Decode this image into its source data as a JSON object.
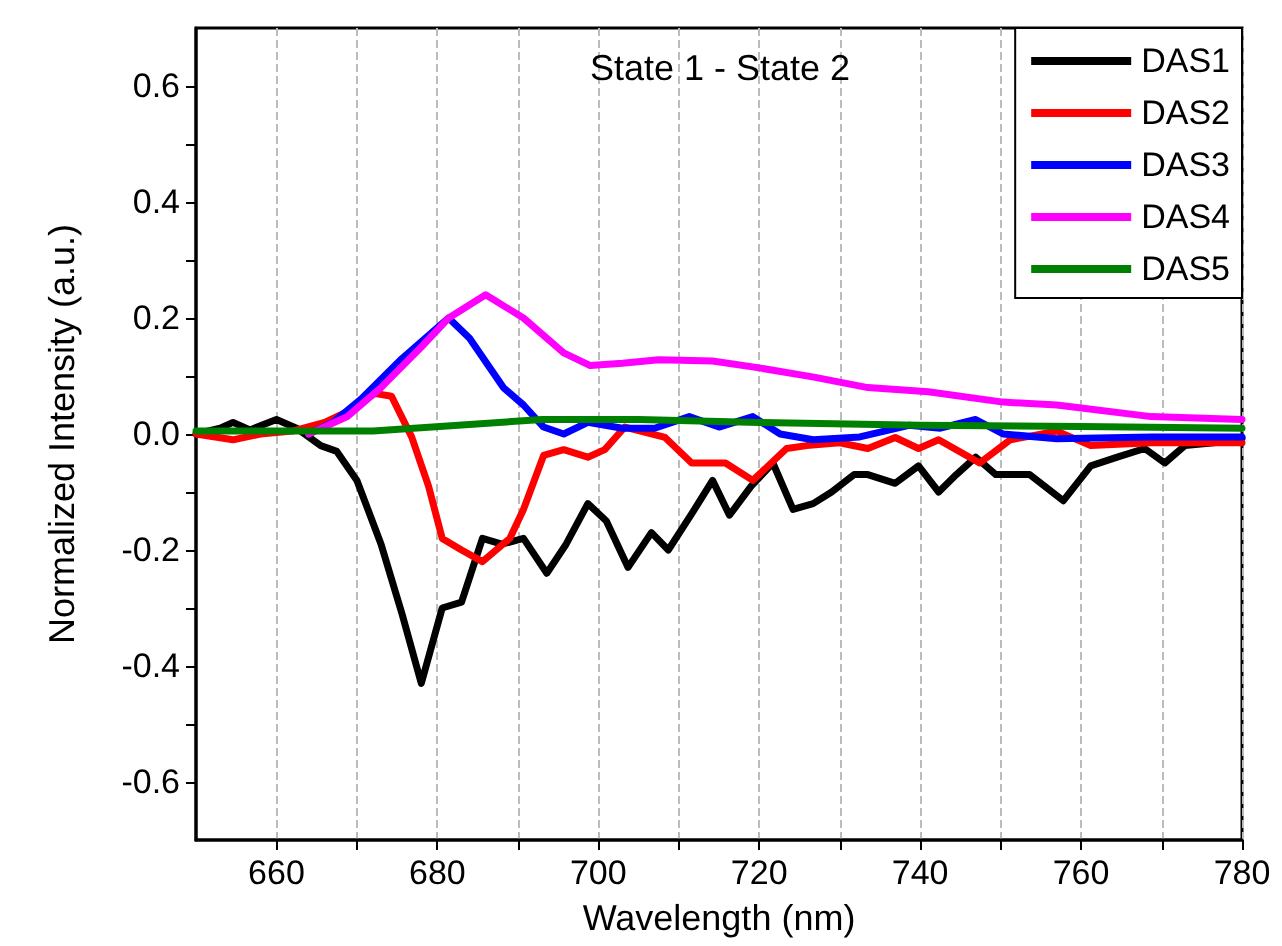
{
  "chart_data": {
    "type": "line",
    "title": "State 1 - State 2",
    "xlabel": "Wavelength (nm)",
    "ylabel": "Normalized Intensity (a.u.)",
    "xlim": [
      650,
      780
    ],
    "ylim": [
      -0.7,
      0.7
    ],
    "xticks": [
      660,
      {
        "value": 670,
        "label": null
      },
      680,
      {
        "value": 690,
        "label": null
      },
      700,
      {
        "value": 710,
        "label": null
      },
      720,
      {
        "value": 730,
        "label": null
      },
      740,
      {
        "value": 750,
        "label": null
      },
      760,
      {
        "value": 770,
        "label": null
      },
      780
    ],
    "yticks": [
      -0.6,
      {
        "value": -0.5,
        "label": null
      },
      -0.4,
      {
        "value": -0.3,
        "label": null
      },
      -0.2,
      {
        "value": -0.1,
        "label": null
      },
      {
        "value": 0,
        "label": "0.0"
      },
      {
        "value": 0.1,
        "label": null
      },
      0.2,
      {
        "value": 0.3,
        "label": null
      },
      0.4,
      {
        "value": 0.5,
        "label": null
      },
      0.6
    ],
    "grid": "x",
    "legend": "top right",
    "marker": "none",
    "line_style": "solid",
    "series": [
      {
        "name": "DAS1",
        "color": "#000000",
        "x": [
          650,
          653,
          654.6,
          656.7,
          660,
          662.5,
          665.5,
          667.5,
          670,
          673,
          675.6,
          678,
          680.6,
          683,
          685.6,
          688,
          690.7,
          693.6,
          696,
          698.7,
          701,
          703.7,
          706.6,
          708.7,
          711.5,
          714.2,
          716.3,
          719,
          721.7,
          724.2,
          726.7,
          729,
          731.8,
          733.5,
          736.9,
          739.8,
          742.3,
          744.5,
          746.9,
          749.4,
          753.6,
          757.8,
          761.2,
          764.5,
          767.9,
          770.4,
          772.9,
          776.5,
          780
        ],
        "values": [
          0.0,
          0.01,
          0.02,
          0.007,
          0.025,
          0.01,
          -0.02,
          -0.03,
          -0.08,
          -0.19,
          -0.31,
          -0.43,
          -0.3,
          -0.29,
          -0.18,
          -0.19,
          -0.18,
          -0.24,
          -0.19,
          -0.12,
          -0.15,
          -0.23,
          -0.17,
          -0.2,
          -0.14,
          -0.08,
          -0.14,
          -0.09,
          -0.05,
          -0.13,
          -0.12,
          -0.1,
          -0.07,
          -0.07,
          -0.085,
          -0.055,
          -0.1,
          -0.07,
          -0.04,
          -0.07,
          -0.07,
          -0.115,
          -0.055,
          -0.04,
          -0.025,
          -0.05,
          -0.02,
          -0.015,
          -0.007
        ]
      },
      {
        "name": "DAS2",
        "color": "#ff0000",
        "x": [
          650,
          654.6,
          658,
          662,
          666,
          669,
          672.2,
          674.3,
          676.8,
          678.9,
          680.6,
          683,
          685.6,
          689,
          690.7,
          693.2,
          695.7,
          698.7,
          700.8,
          703.3,
          708.3,
          711.6,
          715.8,
          719.2,
          723.4,
          725.9,
          730,
          733.5,
          736.9,
          739.8,
          742.3,
          747.4,
          751.2,
          757,
          761.2,
          768.7,
          780
        ],
        "values": [
          0.0,
          -0.01,
          0.0,
          0.005,
          0.02,
          0.04,
          0.07,
          0.065,
          -0.005,
          -0.09,
          -0.18,
          -0.2,
          -0.22,
          -0.18,
          -0.13,
          -0.037,
          -0.027,
          -0.04,
          -0.027,
          0.012,
          -0.006,
          -0.05,
          -0.05,
          -0.08,
          -0.025,
          -0.02,
          -0.015,
          -0.025,
          -0.006,
          -0.025,
          -0.01,
          -0.05,
          -0.01,
          0.005,
          -0.02,
          -0.015,
          -0.015
        ]
      },
      {
        "name": "DAS3",
        "color": "#0000ff",
        "x": [
          664,
          667,
          670.5,
          675.6,
          681.4,
          684,
          688.2,
          690.7,
          693.2,
          695.7,
          698.7,
          703,
          707,
          711.3,
          715,
          719.2,
          722.6,
          726.7,
          732.5,
          738.6,
          742.5,
          746.9,
          750.3,
          757,
          768.7,
          780
        ],
        "values": [
          0.0,
          0.02,
          0.06,
          0.13,
          0.2,
          0.165,
          0.08,
          0.05,
          0.012,
          0.0,
          0.02,
          0.01,
          0.01,
          0.03,
          0.012,
          0.03,
          0.0,
          -0.01,
          -0.005,
          0.015,
          0.01,
          0.025,
          0.0,
          -0.008,
          -0.005,
          -0.005
        ]
      },
      {
        "name": "DAS4",
        "color": "#ff00ff",
        "x": [
          664,
          668.8,
          673,
          678,
          681.4,
          686,
          690.7,
          695.7,
          699,
          703,
          707.5,
          714.2,
          720,
          726.8,
          733.5,
          741,
          750.3,
          757,
          768.7,
          780
        ],
        "values": [
          0.0,
          0.03,
          0.08,
          0.15,
          0.2,
          0.24,
          0.2,
          0.14,
          0.118,
          0.122,
          0.128,
          0.126,
          0.114,
          0.098,
          0.08,
          0.073,
          0.055,
          0.05,
          0.03,
          0.025
        ]
      },
      {
        "name": "DAS5",
        "color": "#008000",
        "x": [
          650,
          672,
          693,
          705,
          720,
          740,
          760,
          780
        ],
        "values": [
          0.005,
          0.005,
          0.025,
          0.025,
          0.02,
          0.015,
          0.013,
          0.01
        ]
      }
    ]
  }
}
